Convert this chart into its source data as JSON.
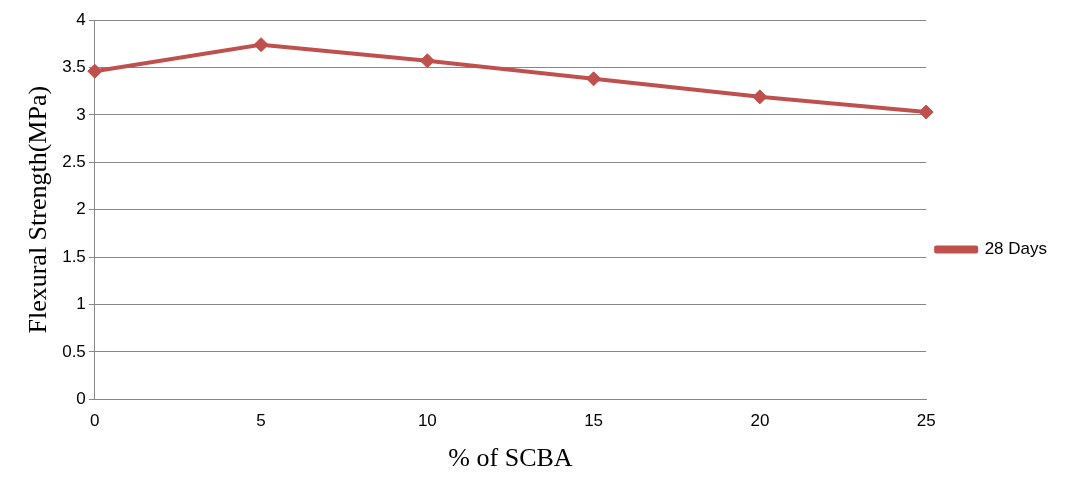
{
  "chart_data": {
    "type": "line",
    "xlabel": "% of SCBA",
    "ylabel": "Flexural Strength(MPa)",
    "categories": [
      "0",
      "5",
      "10",
      "15",
      "20",
      "25"
    ],
    "series": [
      {
        "name": "28 Days",
        "color": "#c0504d",
        "values": [
          3.46,
          3.74,
          3.57,
          3.38,
          3.19,
          3.03
        ]
      }
    ],
    "ylim": [
      0,
      4
    ],
    "yticks": [
      0,
      0.5,
      1,
      1.5,
      2,
      2.5,
      3,
      3.5,
      4
    ],
    "grid": "y",
    "legend": "right",
    "marker": "diamond",
    "line_style": "solid"
  }
}
